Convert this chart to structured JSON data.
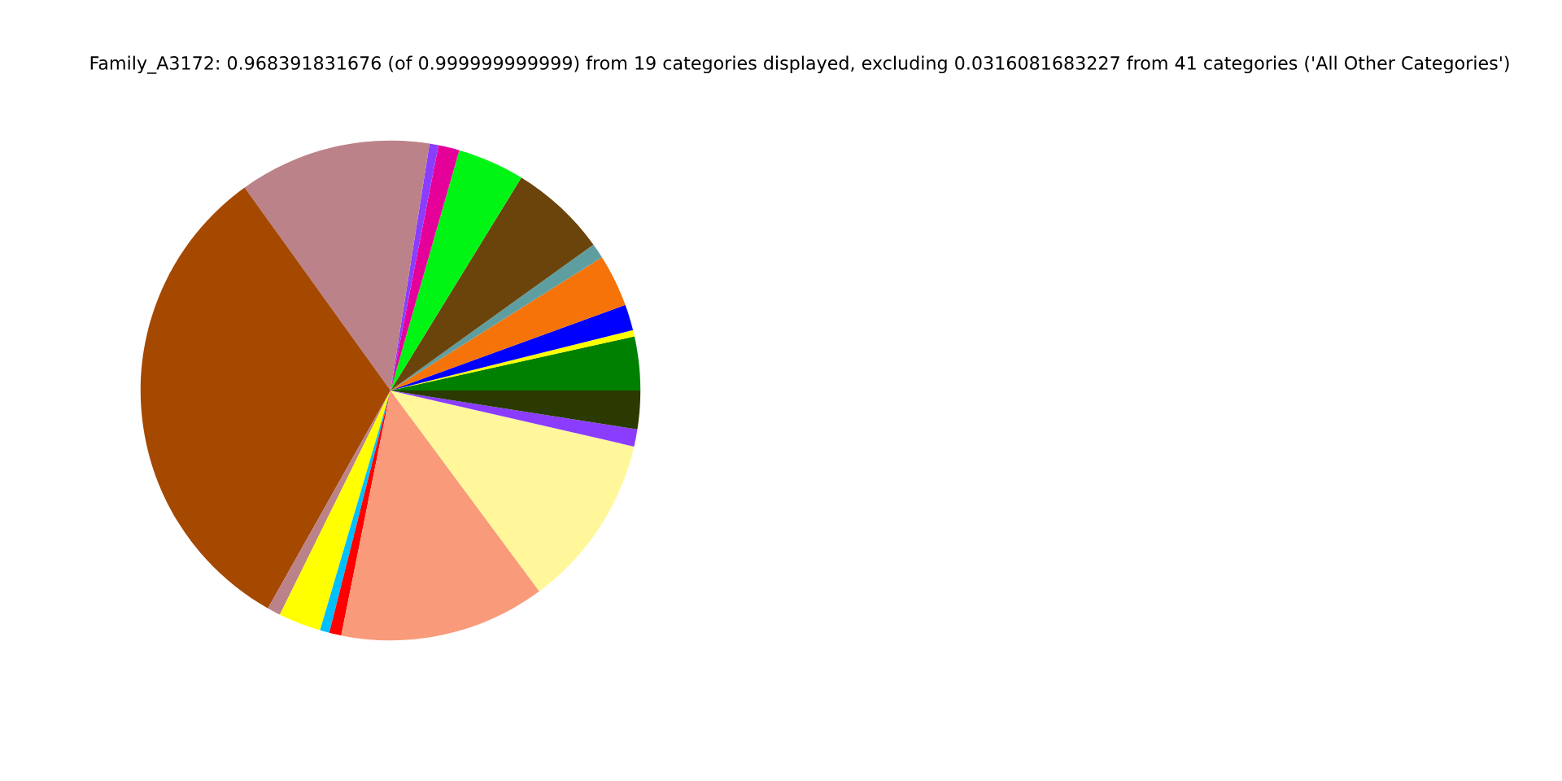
{
  "chart_data": {
    "type": "pie",
    "title": "Family_A3172: 0.968391831676 (of 0.999999999999) from 19 categories displayed, excluding 0.0316081683227 from 41 categories ('All Other Categories')",
    "categories": [
      null,
      null,
      null,
      null,
      null,
      null,
      null,
      null,
      null,
      null,
      null,
      null,
      null,
      null,
      null,
      null,
      null,
      null,
      null
    ],
    "values": [
      3.47,
      0.42,
      1.67,
      3.39,
      0.97,
      6.31,
      4.33,
      1.36,
      0.58,
      12.42,
      31.92,
      0.86,
      2.75,
      0.61,
      0.78,
      13.31,
      11.25,
      1.11,
      2.49
    ],
    "colors": [
      "#008000",
      "#ffff00",
      "#0000ff",
      "#f57308",
      "#5f9ea0",
      "#6b440b",
      "#00f514",
      "#e6009a",
      "#8b3dff",
      "#bc8289",
      "#a54800",
      "#bc8289",
      "#ffff00",
      "#00bfff",
      "#ff0000",
      "#f99a7a",
      "#fff79a",
      "#8b3dff",
      "#2a3a00"
    ]
  }
}
